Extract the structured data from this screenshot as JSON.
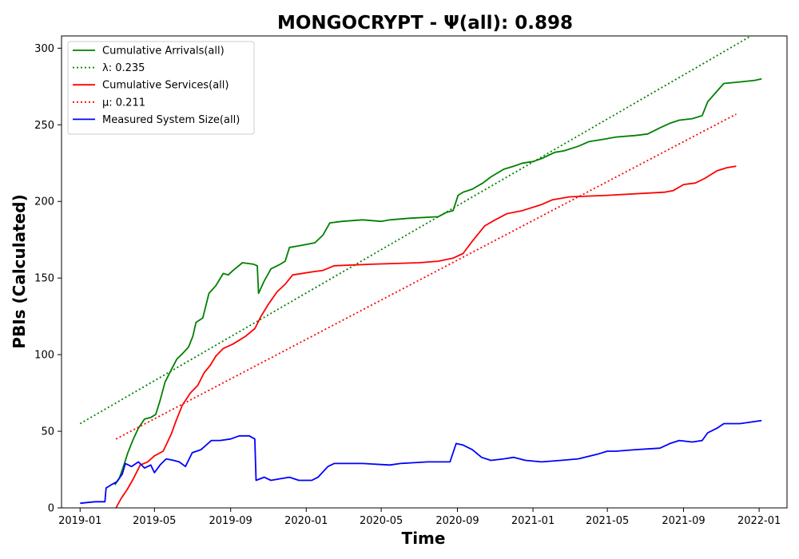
{
  "chart_data": {
    "type": "line",
    "title": "MONGOCRYPT -  Ψ(all): 0.898",
    "xlabel": "Time",
    "ylabel": "PBIs (Calculated)",
    "ylim": [
      0,
      308
    ],
    "xlim": [
      "2018-12-02",
      "2022-02-15"
    ],
    "grid": false,
    "legend_position": "top-left",
    "x_ticks": [
      "2019-01",
      "2019-05",
      "2019-09",
      "2020-01",
      "2020-05",
      "2020-09",
      "2021-01",
      "2021-05",
      "2021-09",
      "2022-01"
    ],
    "x_tick_dates": [
      "2019-01-01",
      "2019-05-01",
      "2019-09-01",
      "2020-01-01",
      "2020-05-01",
      "2020-09-01",
      "2021-01-01",
      "2021-05-01",
      "2021-09-01",
      "2022-01-01"
    ],
    "y_ticks": [
      0,
      50,
      100,
      150,
      200,
      250,
      300
    ],
    "series": [
      {
        "name": "Cumulative Arrivals(all)",
        "color": "#008000",
        "style": "solid",
        "points": [
          [
            "2019-02-26",
            15
          ],
          [
            "2019-03-05",
            19
          ],
          [
            "2019-03-12",
            27
          ],
          [
            "2019-03-19",
            36
          ],
          [
            "2019-03-28",
            45
          ],
          [
            "2019-04-05",
            52
          ],
          [
            "2019-04-15",
            58
          ],
          [
            "2019-04-25",
            59
          ],
          [
            "2019-05-03",
            61
          ],
          [
            "2019-05-10",
            70
          ],
          [
            "2019-05-18",
            82
          ],
          [
            "2019-05-28",
            90
          ],
          [
            "2019-06-06",
            97
          ],
          [
            "2019-06-16",
            101
          ],
          [
            "2019-06-25",
            105
          ],
          [
            "2019-07-02",
            112
          ],
          [
            "2019-07-07",
            121
          ],
          [
            "2019-07-18",
            124
          ],
          [
            "2019-07-28",
            140
          ],
          [
            "2019-08-08",
            145
          ],
          [
            "2019-08-20",
            153
          ],
          [
            "2019-08-28",
            152
          ],
          [
            "2019-09-05",
            155
          ],
          [
            "2019-09-20",
            160
          ],
          [
            "2019-10-08",
            159
          ],
          [
            "2019-10-14",
            158
          ],
          [
            "2019-10-16",
            140
          ],
          [
            "2019-10-25",
            148
          ],
          [
            "2019-11-05",
            156
          ],
          [
            "2019-11-20",
            159
          ],
          [
            "2019-11-28",
            161
          ],
          [
            "2019-12-05",
            170
          ],
          [
            "2019-12-20",
            171
          ],
          [
            "2020-01-15",
            173
          ],
          [
            "2020-01-28",
            178
          ],
          [
            "2020-02-08",
            186
          ],
          [
            "2020-02-28",
            187
          ],
          [
            "2020-04-01",
            188
          ],
          [
            "2020-05-01",
            187
          ],
          [
            "2020-05-15",
            188
          ],
          [
            "2020-06-15",
            189
          ],
          [
            "2020-08-01",
            190
          ],
          [
            "2020-08-15",
            193
          ],
          [
            "2020-08-25",
            194
          ],
          [
            "2020-09-02",
            204
          ],
          [
            "2020-09-10",
            206
          ],
          [
            "2020-09-25",
            208
          ],
          [
            "2020-10-12",
            212
          ],
          [
            "2020-10-25",
            216
          ],
          [
            "2020-11-15",
            221
          ],
          [
            "2020-12-01",
            223
          ],
          [
            "2020-12-15",
            225
          ],
          [
            "2021-01-01",
            226
          ],
          [
            "2021-01-15",
            228
          ],
          [
            "2021-02-05",
            232
          ],
          [
            "2021-02-20",
            233
          ],
          [
            "2021-03-15",
            236
          ],
          [
            "2021-04-01",
            239
          ],
          [
            "2021-05-01",
            241
          ],
          [
            "2021-05-15",
            242
          ],
          [
            "2021-06-15",
            243
          ],
          [
            "2021-07-05",
            244
          ],
          [
            "2021-07-25",
            248
          ],
          [
            "2021-08-10",
            251
          ],
          [
            "2021-08-25",
            253
          ],
          [
            "2021-09-15",
            254
          ],
          [
            "2021-10-01",
            256
          ],
          [
            "2021-10-10",
            265
          ],
          [
            "2021-10-25",
            272
          ],
          [
            "2021-11-05",
            277
          ],
          [
            "2021-12-01",
            278
          ],
          [
            "2021-12-25",
            279
          ],
          [
            "2022-01-05",
            280
          ]
        ]
      },
      {
        "name": "λ: 0.235",
        "color": "#008000",
        "style": "dotted",
        "points": [
          [
            "2019-01-01",
            55
          ],
          [
            "2022-01-01",
            311
          ]
        ]
      },
      {
        "name": "Cumulative Services(all)",
        "color": "#ff0000",
        "style": "solid",
        "points": [
          [
            "2019-02-28",
            0
          ],
          [
            "2019-03-08",
            6
          ],
          [
            "2019-03-18",
            12
          ],
          [
            "2019-03-28",
            19
          ],
          [
            "2019-04-08",
            28
          ],
          [
            "2019-04-20",
            30
          ],
          [
            "2019-05-01",
            34
          ],
          [
            "2019-05-15",
            37
          ],
          [
            "2019-05-28",
            48
          ],
          [
            "2019-06-05",
            57
          ],
          [
            "2019-06-15",
            67
          ],
          [
            "2019-06-28",
            75
          ],
          [
            "2019-07-10",
            80
          ],
          [
            "2019-07-20",
            88
          ],
          [
            "2019-07-30",
            93
          ],
          [
            "2019-08-08",
            99
          ],
          [
            "2019-08-20",
            104
          ],
          [
            "2019-09-05",
            107
          ],
          [
            "2019-09-25",
            112
          ],
          [
            "2019-10-10",
            117
          ],
          [
            "2019-10-20",
            125
          ],
          [
            "2019-11-01",
            133
          ],
          [
            "2019-11-15",
            141
          ],
          [
            "2019-11-28",
            146
          ],
          [
            "2019-12-10",
            152
          ],
          [
            "2020-01-10",
            154
          ],
          [
            "2020-01-28",
            155
          ],
          [
            "2020-02-15",
            158
          ],
          [
            "2020-04-15",
            159
          ],
          [
            "2020-07-01",
            160
          ],
          [
            "2020-08-01",
            161
          ],
          [
            "2020-08-25",
            163
          ],
          [
            "2020-09-10",
            166
          ],
          [
            "2020-09-25",
            174
          ],
          [
            "2020-10-15",
            184
          ],
          [
            "2020-11-01",
            188
          ],
          [
            "2020-11-20",
            192
          ],
          [
            "2020-12-15",
            194
          ],
          [
            "2021-01-15",
            198
          ],
          [
            "2021-02-01",
            201
          ],
          [
            "2021-03-01",
            203
          ],
          [
            "2021-05-01",
            204
          ],
          [
            "2021-08-01",
            206
          ],
          [
            "2021-08-15",
            207
          ],
          [
            "2021-09-01",
            211
          ],
          [
            "2021-09-20",
            212
          ],
          [
            "2021-10-05",
            215
          ],
          [
            "2021-10-25",
            220
          ],
          [
            "2021-11-10",
            222
          ],
          [
            "2021-11-25",
            223
          ]
        ]
      },
      {
        "name": "μ: 0.211",
        "color": "#ff0000",
        "style": "dotted",
        "points": [
          [
            "2019-02-28",
            45
          ],
          [
            "2021-11-25",
            257
          ]
        ]
      },
      {
        "name": "Measured System Size(all)",
        "color": "#0000ff",
        "style": "solid",
        "points": [
          [
            "2019-01-01",
            3
          ],
          [
            "2019-01-25",
            4
          ],
          [
            "2019-02-10",
            4
          ],
          [
            "2019-02-12",
            13
          ],
          [
            "2019-02-20",
            15
          ],
          [
            "2019-03-01",
            17
          ],
          [
            "2019-03-10",
            22
          ],
          [
            "2019-03-15",
            29
          ],
          [
            "2019-03-25",
            27
          ],
          [
            "2019-04-05",
            30
          ],
          [
            "2019-04-15",
            26
          ],
          [
            "2019-04-25",
            28
          ],
          [
            "2019-05-01",
            23
          ],
          [
            "2019-05-10",
            28
          ],
          [
            "2019-05-20",
            32
          ],
          [
            "2019-06-01",
            31
          ],
          [
            "2019-06-10",
            30
          ],
          [
            "2019-06-20",
            27
          ],
          [
            "2019-07-01",
            36
          ],
          [
            "2019-07-15",
            38
          ],
          [
            "2019-08-01",
            44
          ],
          [
            "2019-08-15",
            44
          ],
          [
            "2019-09-01",
            45
          ],
          [
            "2019-09-15",
            47
          ],
          [
            "2019-10-01",
            47
          ],
          [
            "2019-10-10",
            45
          ],
          [
            "2019-10-12",
            18
          ],
          [
            "2019-10-25",
            20
          ],
          [
            "2019-11-05",
            18
          ],
          [
            "2019-11-20",
            19
          ],
          [
            "2019-12-05",
            20
          ],
          [
            "2019-12-20",
            18
          ],
          [
            "2020-01-10",
            18
          ],
          [
            "2020-01-20",
            20
          ],
          [
            "2020-02-05",
            27
          ],
          [
            "2020-02-15",
            29
          ],
          [
            "2020-04-01",
            29
          ],
          [
            "2020-05-15",
            28
          ],
          [
            "2020-06-01",
            29
          ],
          [
            "2020-07-15",
            30
          ],
          [
            "2020-08-20",
            30
          ],
          [
            "2020-08-30",
            42
          ],
          [
            "2020-09-10",
            41
          ],
          [
            "2020-09-25",
            38
          ],
          [
            "2020-10-10",
            33
          ],
          [
            "2020-10-25",
            31
          ],
          [
            "2020-11-15",
            32
          ],
          [
            "2020-12-01",
            33
          ],
          [
            "2020-12-20",
            31
          ],
          [
            "2021-01-15",
            30
          ],
          [
            "2021-02-15",
            31
          ],
          [
            "2021-03-15",
            32
          ],
          [
            "2021-04-15",
            35
          ],
          [
            "2021-05-01",
            37
          ],
          [
            "2021-05-15",
            37
          ],
          [
            "2021-06-15",
            38
          ],
          [
            "2021-07-25",
            39
          ],
          [
            "2021-08-10",
            42
          ],
          [
            "2021-08-25",
            44
          ],
          [
            "2021-09-15",
            43
          ],
          [
            "2021-10-01",
            44
          ],
          [
            "2021-10-10",
            49
          ],
          [
            "2021-10-25",
            52
          ],
          [
            "2021-11-05",
            55
          ],
          [
            "2021-12-01",
            55
          ],
          [
            "2022-01-05",
            57
          ]
        ]
      }
    ]
  }
}
